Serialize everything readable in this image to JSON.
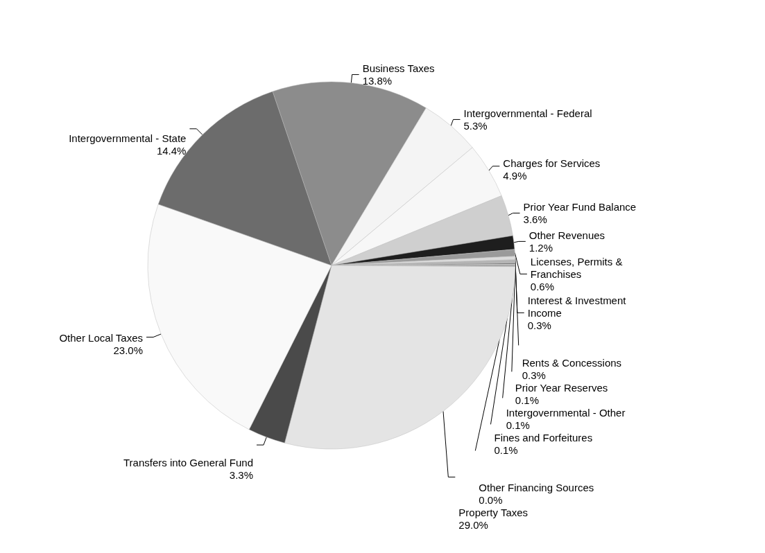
{
  "chart_data": {
    "type": "pie",
    "categories": [
      "Business Taxes",
      "Intergovernmental - Federal",
      "Charges for Services",
      "Prior Year Fund Balance",
      "Other Revenues",
      "Licenses, Permits & Franchises",
      "Rents & Concessions",
      "Interest & Investment Income",
      "Prior Year Reserves",
      "Intergovernmental - Other",
      "Fines and Forfeitures",
      "Other Financing Sources",
      "Property Taxes",
      "Transfers into General Fund",
      "Other Local Taxes",
      "Intergovernmental - State"
    ],
    "values": [
      13.8,
      5.3,
      4.9,
      3.6,
      1.2,
      0.6,
      0.3,
      0.3,
      0.1,
      0.1,
      0.1,
      0.0,
      29.0,
      3.3,
      23.0,
      14.4
    ],
    "value_labels": [
      "13.8%",
      "5.3%",
      "4.9%",
      "3.6%",
      "1.2%",
      "0.6%",
      "0.3%",
      "0.3%",
      "0.1%",
      "0.1%",
      "0.1%",
      "0.0%",
      "29.0%",
      "3.3%",
      "23.0%",
      "14.4%"
    ],
    "colors": [
      "#8c8c8c",
      "#f4f4f4",
      "#f7f7f7",
      "#cfcfcf",
      "#1e1e1e",
      "#9a9a9a",
      "#dcdcdc",
      "#b4b4b4",
      "#6a6a6a",
      "#c4c4c4",
      "#888888",
      "#aaaaaa",
      "#e4e4e4",
      "#4a4a4a",
      "#f9f9f9",
      "#6c6c6c"
    ],
    "legend": false
  }
}
